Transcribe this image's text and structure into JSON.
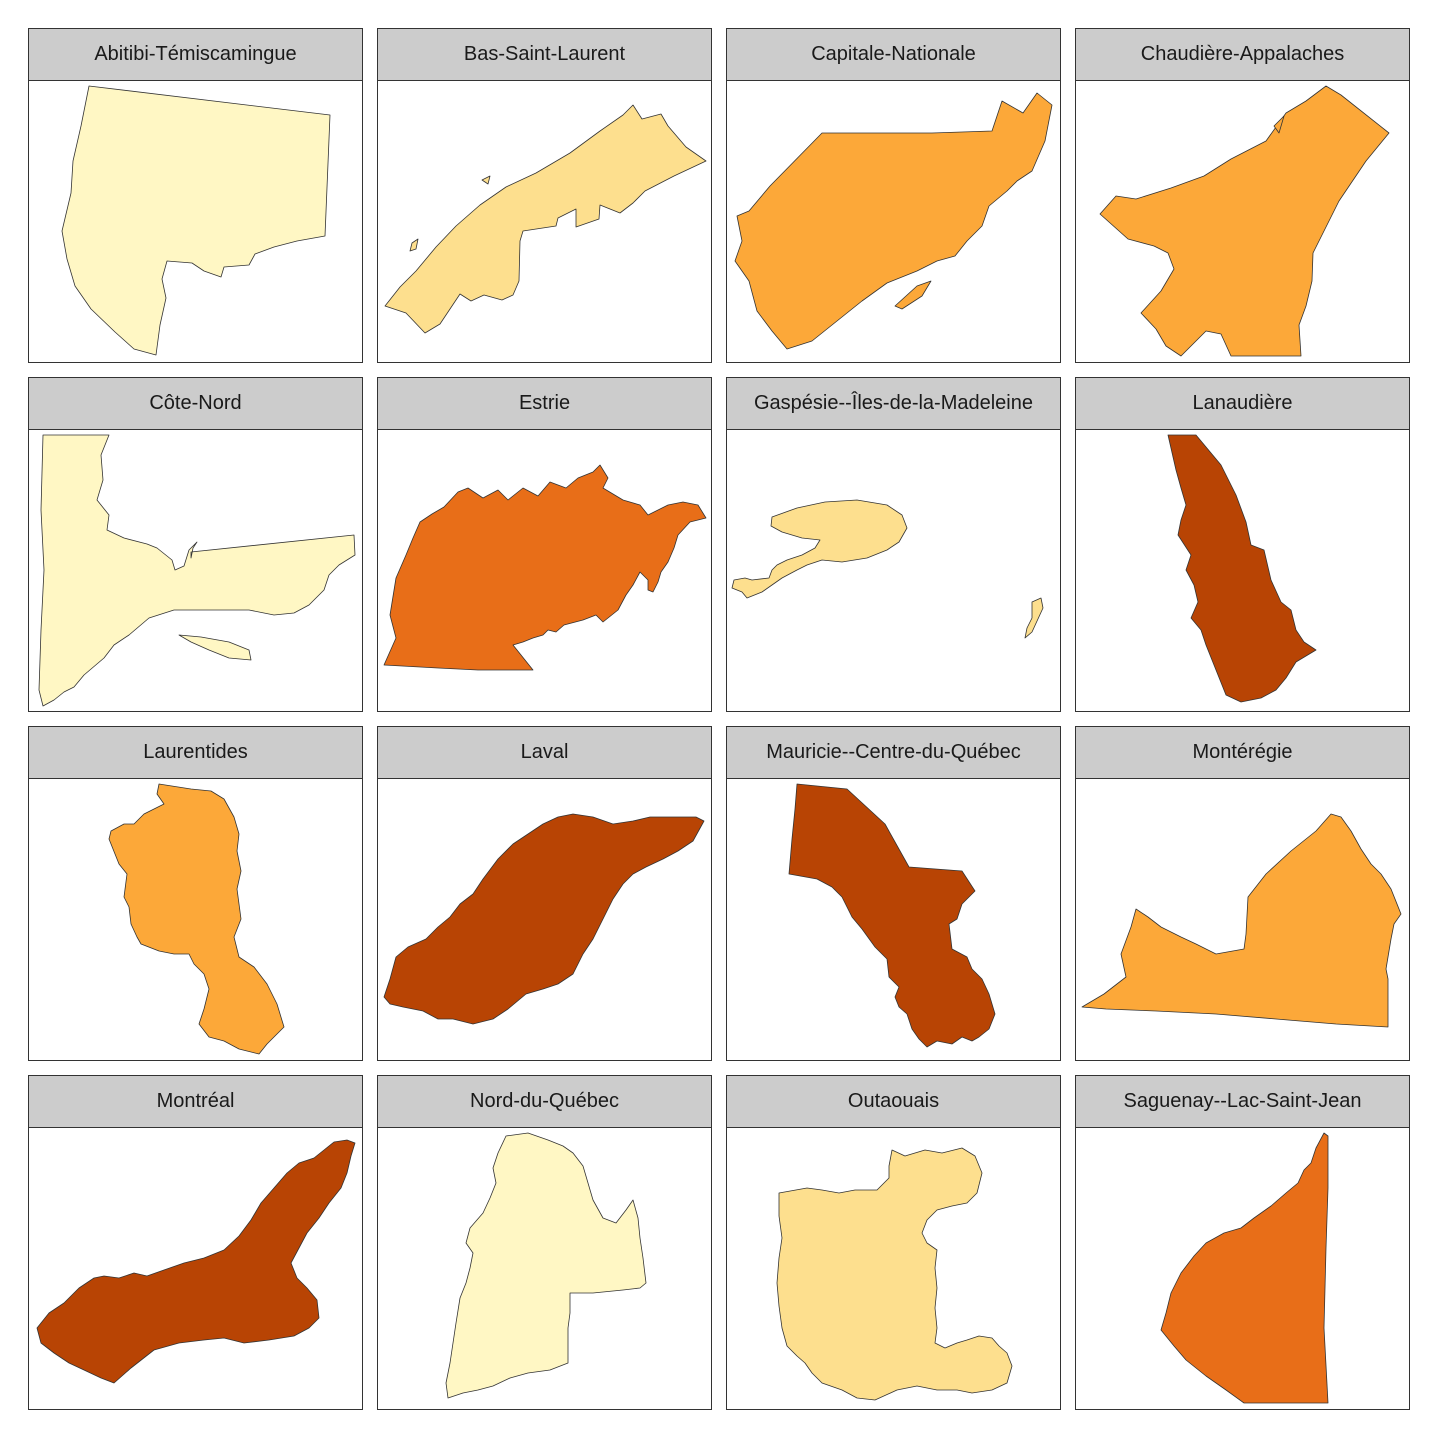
{
  "colors": {
    "strip_background": "#cccccc",
    "panel_border": "#333333",
    "outline": "#333333"
  },
  "facets": [
    {
      "label": "Abitibi-Témiscamingue",
      "fill": "#fff7c4"
    },
    {
      "label": "Bas-Saint-Laurent",
      "fill": "#fddf8e"
    },
    {
      "label": "Capitale-Nationale",
      "fill": "#fca839"
    },
    {
      "label": "Chaudière-Appalaches",
      "fill": "#fca839"
    },
    {
      "label": "Côte-Nord",
      "fill": "#fff7c4"
    },
    {
      "label": "Estrie",
      "fill": "#e86e18"
    },
    {
      "label": "Gaspésie--Îles-de-la-Madeleine",
      "fill": "#fddf8e"
    },
    {
      "label": "Lanaudière",
      "fill": "#b84404"
    },
    {
      "label": "Laurentides",
      "fill": "#fca839"
    },
    {
      "label": "Laval",
      "fill": "#b84404"
    },
    {
      "label": "Mauricie--Centre-du-Québec",
      "fill": "#b84404"
    },
    {
      "label": "Montérégie",
      "fill": "#fca839"
    },
    {
      "label": "Montréal",
      "fill": "#b84404"
    },
    {
      "label": "Nord-du-Québec",
      "fill": "#fff7c4"
    },
    {
      "label": "Outaouais",
      "fill": "#fddf8e"
    },
    {
      "label": "Saguenay--Lac-Saint-Jean",
      "fill": "#e86e18"
    }
  ]
}
